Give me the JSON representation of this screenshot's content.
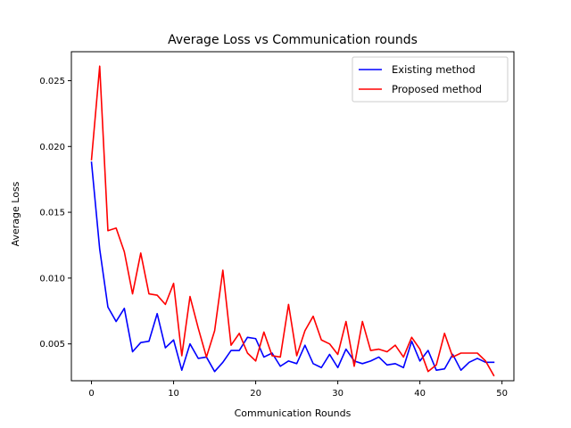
{
  "chart_data": {
    "type": "line",
    "title": "Average Loss vs Communication rounds",
    "xlabel": "Communication Rounds",
    "ylabel": "Average Loss",
    "xlim": [
      -2.45,
      51.45
    ],
    "ylim": [
      0.0022,
      0.0272
    ],
    "xticks": [
      0,
      10,
      20,
      30,
      40,
      50
    ],
    "xtick_labels": [
      "0",
      "10",
      "20",
      "30",
      "40",
      "50"
    ],
    "yticks": [
      0.005,
      0.01,
      0.015,
      0.02,
      0.025
    ],
    "ytick_labels": [
      "0.005",
      "0.010",
      "0.015",
      "0.020",
      "0.025"
    ],
    "grid": false,
    "legend_position": "top-right",
    "x": [
      0,
      1,
      2,
      3,
      4,
      5,
      6,
      7,
      8,
      9,
      10,
      11,
      12,
      13,
      14,
      15,
      16,
      17,
      18,
      19,
      20,
      21,
      22,
      23,
      24,
      25,
      26,
      27,
      28,
      29,
      30,
      31,
      32,
      33,
      34,
      35,
      36,
      37,
      38,
      39,
      40,
      41,
      42,
      43,
      44,
      45,
      46,
      47,
      48,
      49
    ],
    "series": [
      {
        "name": "Existing method",
        "color": "#0000ff",
        "values": [
          0.0188,
          0.0122,
          0.0078,
          0.0067,
          0.0077,
          0.0044,
          0.0051,
          0.0052,
          0.0073,
          0.0047,
          0.0053,
          0.003,
          0.005,
          0.0039,
          0.004,
          0.0029,
          0.0036,
          0.0045,
          0.0045,
          0.0055,
          0.0054,
          0.004,
          0.0043,
          0.0033,
          0.0037,
          0.0035,
          0.0049,
          0.0035,
          0.0032,
          0.0042,
          0.0032,
          0.0046,
          0.0037,
          0.0035,
          0.0037,
          0.004,
          0.0034,
          0.0035,
          0.0032,
          0.0052,
          0.0037,
          0.0045,
          0.003,
          0.0031,
          0.0042,
          0.003,
          0.0036,
          0.0039,
          0.0036,
          0.0036
        ]
      },
      {
        "name": "Proposed method",
        "color": "#ff0000",
        "values": [
          0.019,
          0.0261,
          0.0136,
          0.0138,
          0.012,
          0.0088,
          0.0119,
          0.0088,
          0.0087,
          0.008,
          0.0096,
          0.0041,
          0.0086,
          0.0062,
          0.004,
          0.006,
          0.0106,
          0.0049,
          0.0058,
          0.0043,
          0.0037,
          0.0059,
          0.0041,
          0.004,
          0.008,
          0.0041,
          0.006,
          0.0071,
          0.0053,
          0.005,
          0.0042,
          0.0067,
          0.0033,
          0.0067,
          0.0045,
          0.0046,
          0.0044,
          0.0049,
          0.004,
          0.0055,
          0.0046,
          0.0029,
          0.0034,
          0.0058,
          0.004,
          0.0043,
          0.0043,
          0.0043,
          0.0037,
          0.0026
        ]
      }
    ]
  }
}
